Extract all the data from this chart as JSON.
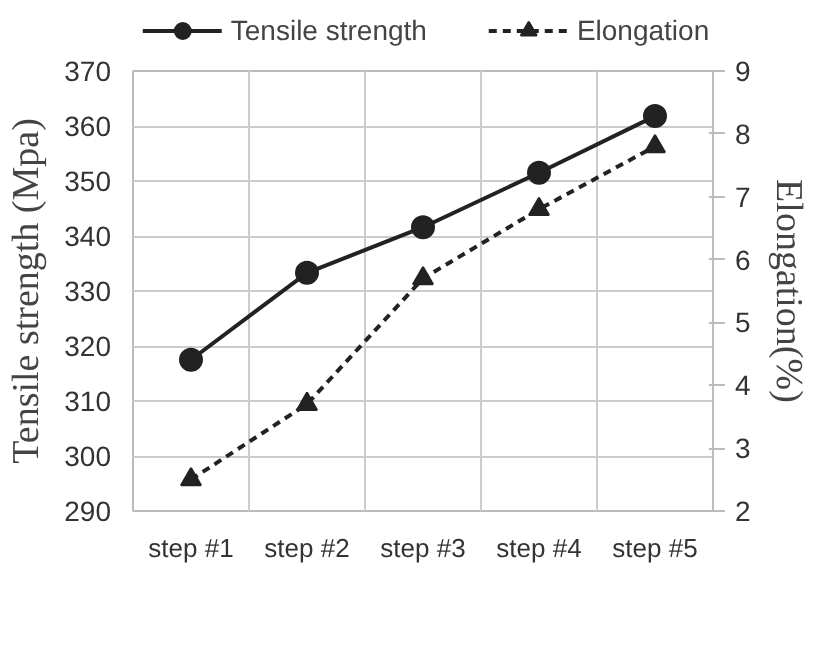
{
  "chart_data": {
    "type": "line",
    "categories": [
      "step #1",
      "step #2",
      "step #3",
      "step #4",
      "step #5"
    ],
    "ylabel": "Tensile strength (Mpa)",
    "y2label": "Elongation(%)",
    "ylim": [
      290,
      370
    ],
    "yticks": [
      290,
      300,
      310,
      320,
      330,
      340,
      350,
      360,
      370
    ],
    "y2lim": [
      2,
      9
    ],
    "y2ticks": [
      2,
      3,
      4,
      5,
      6,
      7,
      8,
      9
    ],
    "grid": true,
    "legend": "top",
    "series": [
      {
        "name": "Tensile strength",
        "color": "#222222",
        "values": [
          317.5,
          333.3,
          341.6,
          351.5,
          361.8
        ],
        "marker": "circle",
        "line_style": "solid"
      },
      {
        "name": "Elongation",
        "color": "#222222",
        "values": [
          2.5,
          3.7,
          5.7,
          6.8,
          7.8
        ],
        "marker": "triangle",
        "line_style": "dashed",
        "axis": "y2"
      }
    ]
  }
}
